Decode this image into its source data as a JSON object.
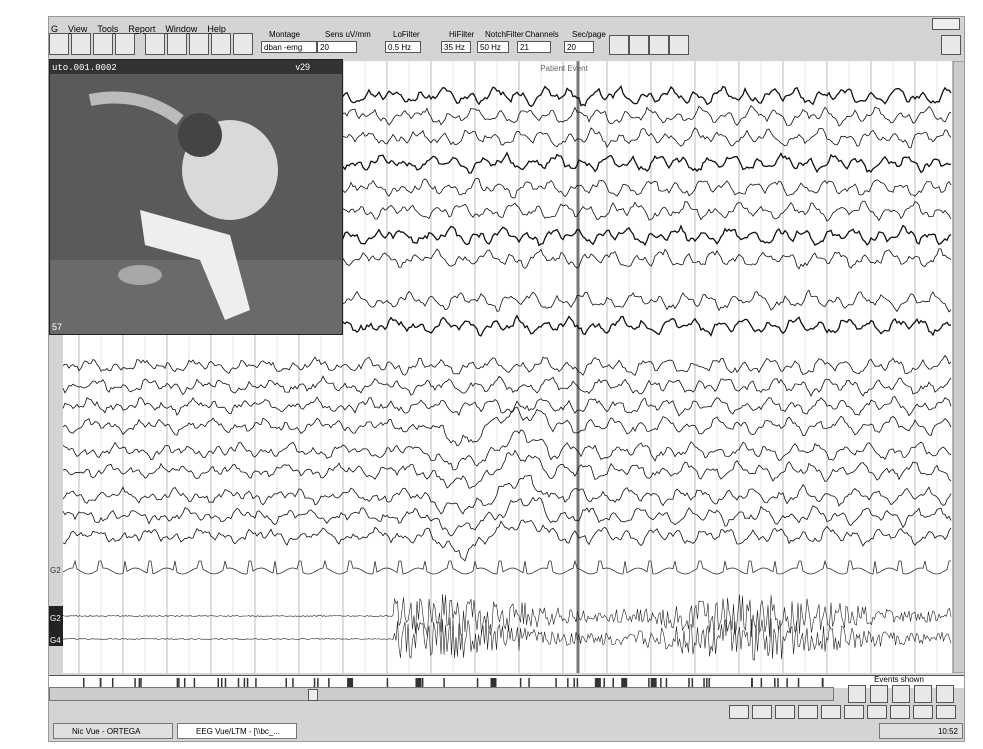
{
  "menu": {
    "items": [
      "G",
      "View",
      "Tools",
      "Report",
      "Window",
      "Help"
    ]
  },
  "toolbar": {
    "labels": [
      "Montage",
      "Sens uV/mm",
      "LoFilter",
      "HiFilter",
      "NotchFilter",
      "Channels",
      "Sec/page"
    ],
    "values": [
      "dban -emg",
      "20",
      "0.5 Hz",
      "35 Hz",
      "50 Hz",
      "21",
      "20"
    ]
  },
  "video": {
    "filename": "uto.001.0002",
    "version": "v29",
    "counter": "57"
  },
  "eeg": {
    "event_label": "Patient Event",
    "channel_labels": [
      "G2",
      "G2",
      "G4"
    ]
  },
  "events": {
    "label": "Events shown"
  },
  "taskbar": {
    "items": [
      "Nic Vue - ORTEGA BELTR...",
      "EEG Vue/LTM - [\\\\bc_..."
    ],
    "clock": "10:52"
  }
}
